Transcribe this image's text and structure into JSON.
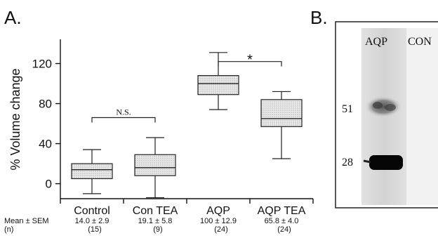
{
  "panel_a_label": "A.",
  "panel_b_label": "B.",
  "chart_data": {
    "type": "box",
    "ylabel": "% Volume change",
    "ylim": [
      -15,
      140
    ],
    "yticks": [
      0,
      40,
      80,
      120
    ],
    "categories": [
      "Control",
      "Con TEA",
      "AQP",
      "AQP TEA"
    ],
    "boxes": [
      {
        "whisker_low": -10,
        "q1": 5,
        "median": 14,
        "q3": 20,
        "whisker_high": 34
      },
      {
        "whisker_low": -14,
        "q1": 8,
        "median": 16,
        "q3": 29,
        "whisker_high": 46
      },
      {
        "whisker_low": 74,
        "q1": 89,
        "median": 100,
        "q3": 108,
        "whisker_high": 131
      },
      {
        "whisker_low": 25,
        "q1": 57,
        "median": 65,
        "q3": 84,
        "whisker_high": 92
      }
    ],
    "stats_row_label": "Mean ± SEM",
    "n_row_label": "(n)",
    "means": [
      "14.0  ±  2.9",
      "19.1 ± 5.8",
      "100 ± 12.9",
      "65.8 ± 4.0"
    ],
    "n": [
      "(15)",
      "(9)",
      "(24)",
      "(24)"
    ],
    "comparisons": [
      {
        "from": 0,
        "to": 1,
        "y": 66,
        "label": "N.S."
      },
      {
        "from": 2,
        "to": 3,
        "y": 122,
        "label": "*"
      }
    ]
  },
  "blot": {
    "lane_labels": [
      "AQP",
      "CON"
    ],
    "markers": [
      "51",
      "28"
    ]
  }
}
